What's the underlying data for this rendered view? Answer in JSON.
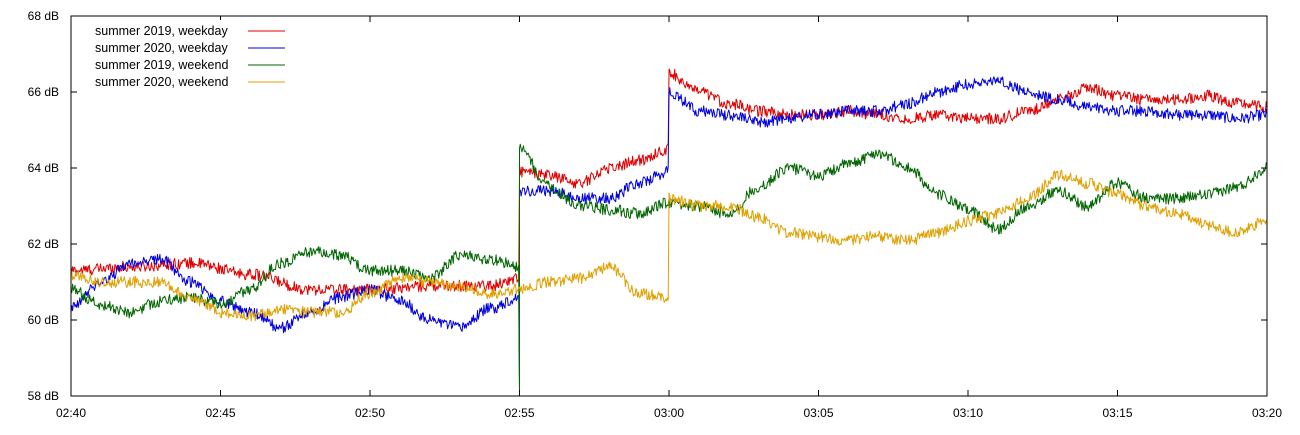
{
  "chart_data": {
    "type": "line",
    "title": "",
    "xlabel": "",
    "ylabel": "",
    "xlim": [
      "02:40",
      "03:20"
    ],
    "ylim": [
      58,
      68
    ],
    "grid": false,
    "legend_position": "top-left",
    "x_ticks": [
      "02:40",
      "02:45",
      "02:50",
      "02:55",
      "03:00",
      "03:05",
      "03:10",
      "03:15",
      "03:20"
    ],
    "y_ticks": [
      "58 dB",
      "60 dB",
      "62 dB",
      "64 dB",
      "66 dB",
      "68 dB"
    ],
    "series": [
      {
        "name": "summer 2019, weekday",
        "color": "#e00000",
        "x": [
          "02:40",
          "02:42",
          "02:44",
          "02:46",
          "02:48",
          "02:50",
          "02:52",
          "02:54",
          "02:55",
          "02:55",
          "02:56",
          "02:57",
          "02:58",
          "02:59",
          "03:00",
          "03:00",
          "03:01",
          "03:02",
          "03:03",
          "03:04",
          "03:05",
          "03:06",
          "03:07",
          "03:08",
          "03:09",
          "03:10",
          "03:11",
          "03:12",
          "03:13",
          "03:14",
          "03:15",
          "03:16",
          "03:17",
          "03:18",
          "03:19",
          "03:20"
        ],
        "y": [
          61.3,
          61.4,
          61.5,
          61.2,
          60.8,
          60.8,
          60.9,
          60.9,
          61.1,
          63.9,
          63.8,
          63.6,
          64.0,
          64.2,
          64.5,
          66.5,
          66.0,
          65.7,
          65.5,
          65.4,
          65.4,
          65.5,
          65.4,
          65.3,
          65.4,
          65.3,
          65.3,
          65.5,
          65.8,
          66.1,
          65.9,
          65.8,
          65.8,
          65.9,
          65.7,
          65.6
        ]
      },
      {
        "name": "summer 2020, weekday",
        "color": "#0000e0",
        "x": [
          "02:40",
          "02:41",
          "02:42",
          "02:43",
          "02:44",
          "02:45",
          "02:46",
          "02:47",
          "02:48",
          "02:49",
          "02:50",
          "02:51",
          "02:52",
          "02:53",
          "02:54",
          "02:55",
          "02:55",
          "02:55",
          "02:56",
          "02:57",
          "02:58",
          "02:59",
          "03:00",
          "03:00",
          "03:01",
          "03:02",
          "03:03",
          "03:04",
          "03:05",
          "03:06",
          "03:07",
          "03:08",
          "03:09",
          "03:10",
          "03:11",
          "03:12",
          "03:13",
          "03:14",
          "03:15",
          "03:16",
          "03:17",
          "03:18",
          "03:19",
          "03:20"
        ],
        "y": [
          60.3,
          61.0,
          61.5,
          61.6,
          61.0,
          60.5,
          60.2,
          59.8,
          60.2,
          60.6,
          60.8,
          60.5,
          60.0,
          59.8,
          60.3,
          60.6,
          58.2,
          63.4,
          63.4,
          63.2,
          63.2,
          63.6,
          63.9,
          66.0,
          65.5,
          65.4,
          65.2,
          65.3,
          65.4,
          65.5,
          65.5,
          65.7,
          66.0,
          66.2,
          66.3,
          66.0,
          65.8,
          65.6,
          65.5,
          65.5,
          65.4,
          65.4,
          65.3,
          65.4
        ]
      },
      {
        "name": "summer 2019, weekend",
        "color": "#006600",
        "x": [
          "02:40",
          "02:41",
          "02:42",
          "02:43",
          "02:44",
          "02:45",
          "02:46",
          "02:47",
          "02:48",
          "02:49",
          "02:50",
          "02:51",
          "02:52",
          "02:53",
          "02:54",
          "02:55",
          "02:55",
          "02:55",
          "02:56",
          "02:57",
          "02:58",
          "02:59",
          "03:00",
          "03:01",
          "03:02",
          "03:03",
          "03:04",
          "03:05",
          "03:06",
          "03:07",
          "03:08",
          "03:09",
          "03:10",
          "03:11",
          "03:12",
          "03:13",
          "03:14",
          "03:15",
          "03:16",
          "03:17",
          "03:18",
          "03:19",
          "03:20"
        ],
        "y": [
          60.8,
          60.4,
          60.2,
          60.5,
          60.6,
          60.4,
          60.8,
          61.5,
          61.8,
          61.7,
          61.3,
          61.3,
          61.1,
          61.7,
          61.6,
          61.4,
          58.0,
          64.5,
          63.5,
          63.0,
          62.9,
          62.8,
          63.1,
          63.0,
          62.8,
          63.5,
          64.0,
          63.8,
          64.1,
          64.4,
          64.0,
          63.3,
          62.9,
          62.4,
          63.0,
          63.4,
          63.0,
          63.6,
          63.2,
          63.2,
          63.3,
          63.5,
          64.0
        ]
      },
      {
        "name": "summer 2020, weekend",
        "color": "#e0a000",
        "x": [
          "02:40",
          "02:41",
          "02:42",
          "02:43",
          "02:44",
          "02:45",
          "02:46",
          "02:47",
          "02:48",
          "02:49",
          "02:50",
          "02:51",
          "02:52",
          "02:53",
          "02:54",
          "02:55",
          "02:56",
          "02:57",
          "02:58",
          "02:59",
          "03:00",
          "03:00",
          "03:01",
          "03:02",
          "03:03",
          "03:04",
          "03:05",
          "03:06",
          "03:07",
          "03:08",
          "03:09",
          "03:10",
          "03:11",
          "03:12",
          "03:13",
          "03:14",
          "03:15",
          "03:16",
          "03:17",
          "03:18",
          "03:19",
          "03:20"
        ],
        "y": [
          61.2,
          61.0,
          61.0,
          61.0,
          60.6,
          60.2,
          60.1,
          60.3,
          60.2,
          60.2,
          60.7,
          61.1,
          61.0,
          60.9,
          60.7,
          60.8,
          61.0,
          61.1,
          61.4,
          60.7,
          60.6,
          63.2,
          63.0,
          63.0,
          62.7,
          62.3,
          62.2,
          62.1,
          62.2,
          62.1,
          62.3,
          62.6,
          62.8,
          63.2,
          63.8,
          63.6,
          63.3,
          63.0,
          62.8,
          62.5,
          62.3,
          62.6
        ]
      }
    ]
  }
}
